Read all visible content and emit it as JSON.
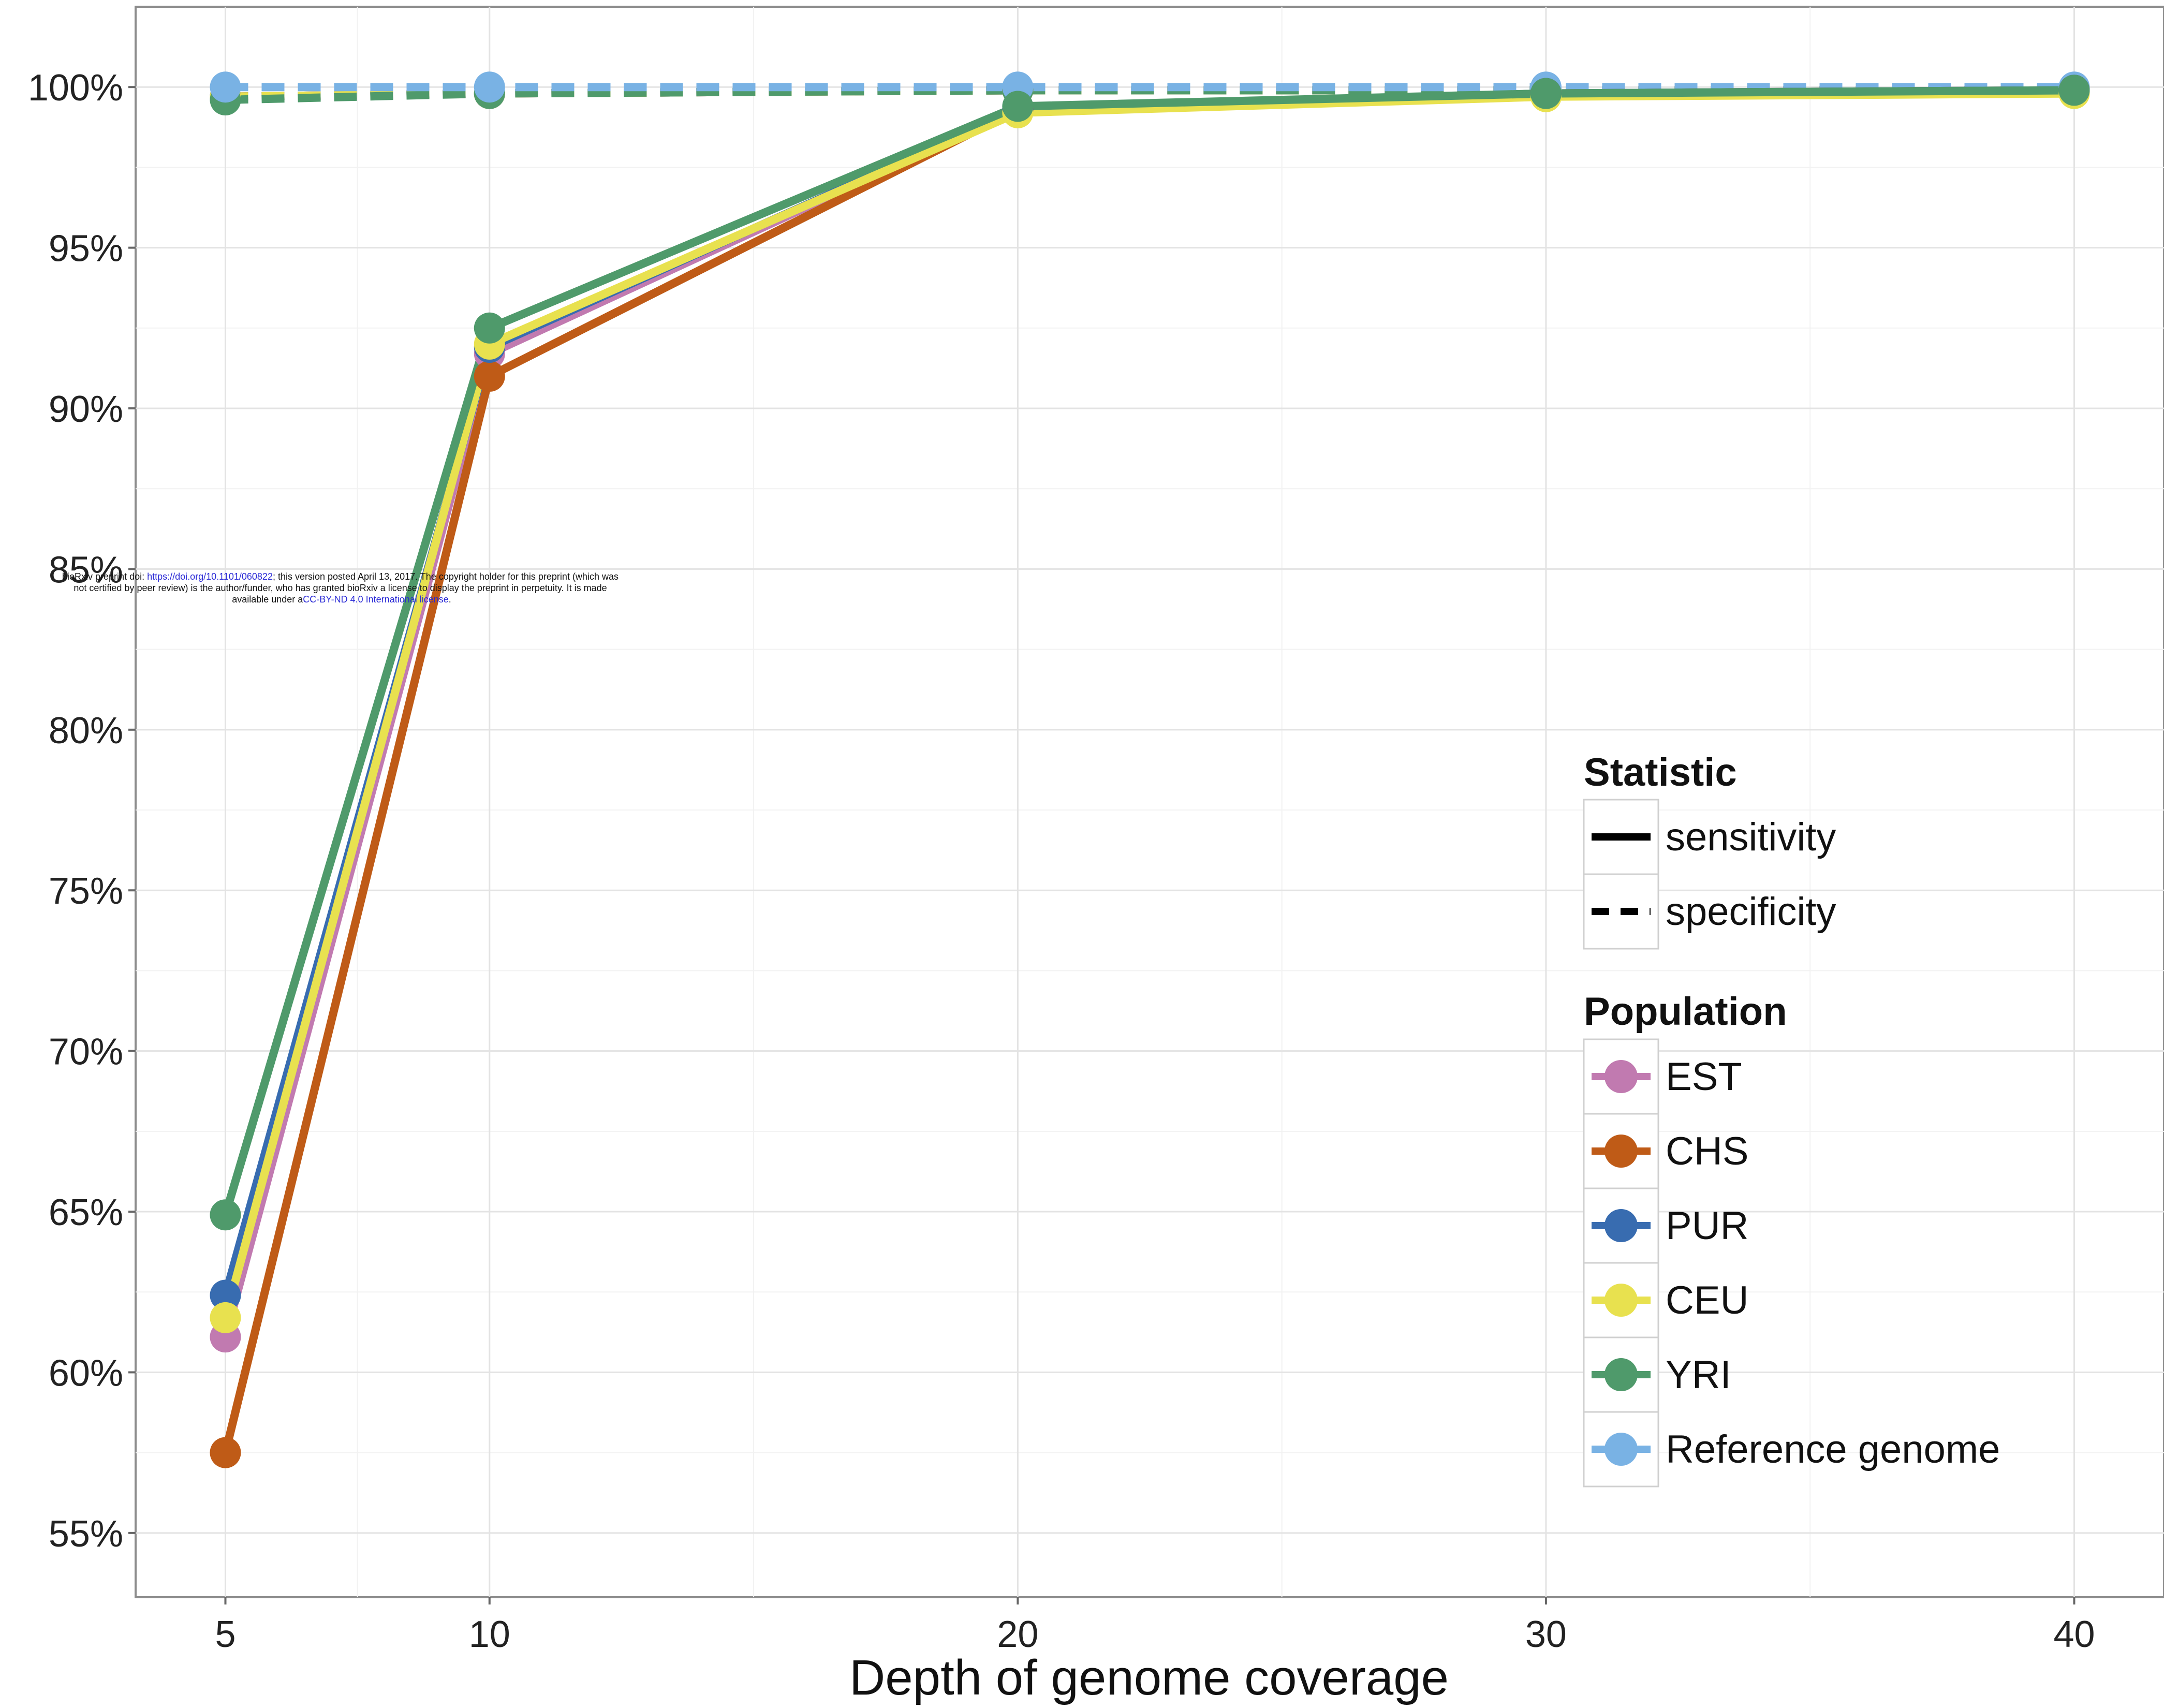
{
  "chart_data": {
    "type": "line",
    "xlabel": "Depth of genome coverage",
    "ylabel": "",
    "x": [
      5,
      10,
      20,
      30,
      40
    ],
    "xlim": [
      3.3,
      41.7
    ],
    "ylim": [
      53,
      102.5
    ],
    "x_ticks": [
      "5",
      "10",
      "20",
      "30",
      "40"
    ],
    "y_ticks": [
      {
        "value": 55,
        "label": "55%"
      },
      {
        "value": 60,
        "label": "60%"
      },
      {
        "value": 65,
        "label": "65%"
      },
      {
        "value": 70,
        "label": "70%"
      },
      {
        "value": 75,
        "label": "75%"
      },
      {
        "value": 80,
        "label": "80%"
      },
      {
        "value": 85,
        "label": "85%"
      },
      {
        "value": 90,
        "label": "90%"
      },
      {
        "value": 95,
        "label": "95%"
      },
      {
        "value": 100,
        "label": "100%"
      }
    ],
    "grid": true,
    "legend_placement": "right",
    "series": [
      {
        "population": "EST",
        "statistic": "sensitivity",
        "color": "#c17ab0",
        "values": [
          61.1,
          91.7,
          99.3,
          99.8,
          99.9
        ]
      },
      {
        "population": "CHS",
        "statistic": "sensitivity",
        "color": "#bf5b17",
        "values": [
          57.5,
          91.0,
          99.3,
          99.8,
          99.9
        ]
      },
      {
        "population": "PUR",
        "statistic": "sensitivity",
        "color": "#386cb0",
        "values": [
          62.4,
          91.9,
          99.3,
          99.8,
          99.9
        ]
      },
      {
        "population": "CEU",
        "statistic": "sensitivity",
        "color": "#e8e14f",
        "values": [
          61.7,
          92.0,
          99.2,
          99.7,
          99.8
        ]
      },
      {
        "population": "YRI",
        "statistic": "sensitivity",
        "color": "#4f9a6b",
        "values": [
          64.9,
          92.5,
          99.4,
          99.8,
          99.9
        ]
      },
      {
        "population": "EST",
        "statistic": "specificity",
        "color": "#c17ab0",
        "values": [
          99.7,
          99.8,
          99.9,
          99.9,
          99.9
        ]
      },
      {
        "population": "CHS",
        "statistic": "specificity",
        "color": "#bf5b17",
        "values": [
          99.7,
          99.8,
          99.9,
          99.9,
          99.9
        ]
      },
      {
        "population": "PUR",
        "statistic": "specificity",
        "color": "#386cb0",
        "values": [
          99.7,
          99.8,
          99.9,
          99.9,
          99.9
        ]
      },
      {
        "population": "CEU",
        "statistic": "specificity",
        "color": "#e8e14f",
        "values": [
          99.7,
          99.8,
          99.9,
          99.9,
          99.9
        ]
      },
      {
        "population": "YRI",
        "statistic": "specificity",
        "color": "#4f9a6b",
        "values": [
          99.6,
          99.8,
          99.9,
          99.9,
          99.9
        ]
      },
      {
        "population": "Reference genome",
        "statistic": "specificity",
        "color": "#79b2e4",
        "values": [
          100.0,
          100.0,
          100.0,
          100.0,
          100.0
        ]
      }
    ],
    "legend": {
      "statistic_title": "Statistic",
      "statistic_items": [
        {
          "label": "sensitivity",
          "dash": "solid"
        },
        {
          "label": "specificity",
          "dash": "dashed"
        }
      ],
      "population_title": "Population",
      "population_items": [
        {
          "label": "EST",
          "color": "#c17ab0"
        },
        {
          "label": "CHS",
          "color": "#bf5b17"
        },
        {
          "label": "PUR",
          "color": "#386cb0"
        },
        {
          "label": "CEU",
          "color": "#e8e14f"
        },
        {
          "label": "YRI",
          "color": "#4f9a6b"
        },
        {
          "label": "Reference genome",
          "color": "#79b2e4"
        }
      ]
    }
  },
  "watermark": {
    "line1_a": "bioRxiv preprint doi: ",
    "line1_link": "https://doi.org/10.1101/060822",
    "line1_b": "; this version posted April 13, 2017. The copyright holder for this preprint (which was",
    "line2": "not certified by peer review) is the author/funder, who has granted bioRxiv a license to display the preprint in perpetuity. It is made",
    "line3_a": "available under a",
    "line3_link": "CC-BY-ND 4.0 International license",
    "line3_b": "."
  }
}
